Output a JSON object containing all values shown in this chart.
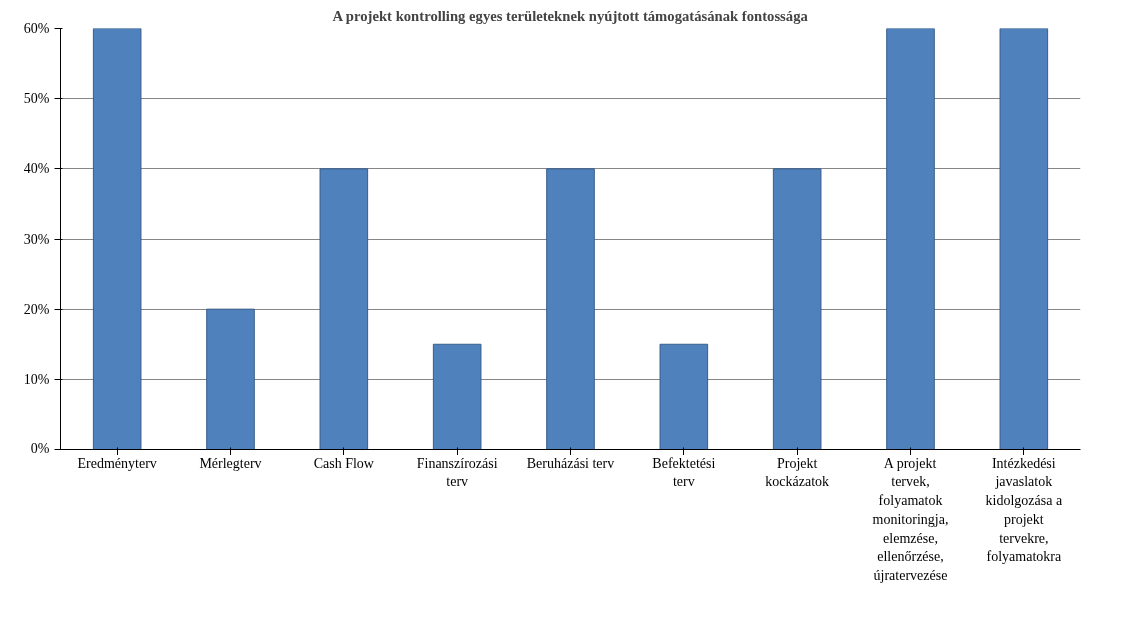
{
  "chart_data": {
    "type": "bar",
    "title": "A projekt kontrolling egyes területeknek nyújtott támogatásának fontossága",
    "categories": [
      "Eredményterv",
      "Mérlegterv",
      "Cash Flow",
      "Finanszírozási terv",
      "Beruházási terv",
      "Befektetési terv",
      "Projekt kockázatok",
      "A projekt tervek, folyamatok monitoringja, elemzése, ellenőrzése, újratervezése",
      "Intézkedési javaslatok kidolgozása a projekt tervekre, folyamatokra"
    ],
    "values": [
      60,
      20,
      40,
      15,
      40,
      15,
      40,
      60,
      60
    ],
    "color": "#4f81bd",
    "ylim": [
      0,
      60
    ],
    "yticks": [
      {
        "value": 0,
        "label": "0%"
      },
      {
        "value": 10,
        "label": "10%"
      },
      {
        "value": 20,
        "label": "20%"
      },
      {
        "value": 30,
        "label": "30%"
      },
      {
        "value": 40,
        "label": "40%"
      },
      {
        "value": 50,
        "label": "50%"
      },
      {
        "value": 60,
        "label": "60%"
      }
    ],
    "grid": "y"
  }
}
